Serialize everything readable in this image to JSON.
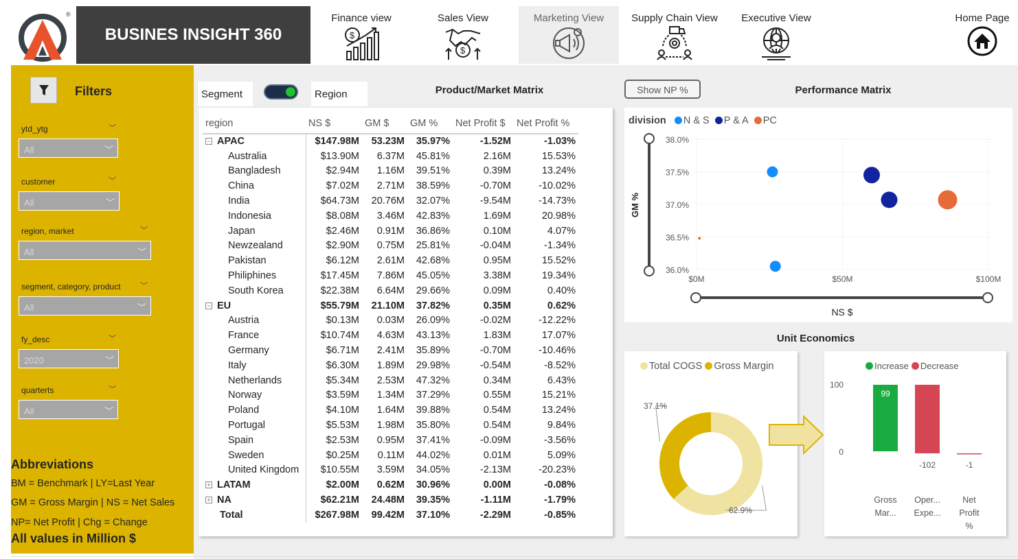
{
  "header": {
    "title": "BUSINES INSIGHT 360",
    "nav": [
      {
        "label": "Finance view",
        "icon": "finance-chart-icon"
      },
      {
        "label": "Sales View",
        "icon": "handshake-icon"
      },
      {
        "label": "Marketing View",
        "icon": "megaphone-icon"
      },
      {
        "label": "Supply Chain View",
        "icon": "supply-chain-icon"
      },
      {
        "label": "Executive View",
        "icon": "executive-icon"
      },
      {
        "label": "Home Page",
        "icon": "home-icon"
      }
    ]
  },
  "filters": {
    "title": "Filters",
    "items": [
      {
        "label": "ytd_ytg",
        "value": "All"
      },
      {
        "label": "customer",
        "value": "All"
      },
      {
        "label": "region, market",
        "value": "All"
      },
      {
        "label": "segment, category, product",
        "value": "All"
      },
      {
        "label": "fy_desc",
        "value": "2020"
      },
      {
        "label": "quarterts",
        "value": "All"
      }
    ]
  },
  "abbreviations": {
    "title": "Abbreviations",
    "lines": [
      "BM = Benchmark | LY=Last Year",
      "GM = Gross Margin | NS = Net Sales",
      "NP= Net Profit | Chg = Change"
    ],
    "footer": "All values in Million $"
  },
  "toggle": {
    "left": "Segment",
    "right": "Region"
  },
  "matrix": {
    "title": "Product/Market Matrix",
    "columns": [
      "region",
      "NS $",
      "GM $",
      "GM %",
      "Net Profit $",
      "Net Profit %"
    ],
    "rows": [
      {
        "type": "group",
        "expander": "⊟",
        "cells": [
          "APAC",
          "$147.98M",
          "53.23M",
          "35.97%",
          "-1.52M",
          "-1.03%"
        ]
      },
      {
        "type": "child",
        "cells": [
          "Australia",
          "$13.90M",
          "6.37M",
          "45.81%",
          "2.16M",
          "15.53%"
        ]
      },
      {
        "type": "child",
        "cells": [
          "Bangladesh",
          "$2.94M",
          "1.16M",
          "39.51%",
          "0.39M",
          "13.24%"
        ]
      },
      {
        "type": "child",
        "cells": [
          "China",
          "$7.02M",
          "2.71M",
          "38.59%",
          "-0.70M",
          "-10.02%"
        ]
      },
      {
        "type": "child",
        "cells": [
          "India",
          "$64.73M",
          "20.76M",
          "32.07%",
          "-9.54M",
          "-14.73%"
        ]
      },
      {
        "type": "child",
        "cells": [
          "Indonesia",
          "$8.08M",
          "3.46M",
          "42.83%",
          "1.69M",
          "20.98%"
        ]
      },
      {
        "type": "child",
        "cells": [
          "Japan",
          "$2.46M",
          "0.91M",
          "36.86%",
          "0.10M",
          "4.07%"
        ]
      },
      {
        "type": "child",
        "cells": [
          "Newzealand",
          "$2.90M",
          "0.75M",
          "25.81%",
          "-0.04M",
          "-1.34%"
        ]
      },
      {
        "type": "child",
        "cells": [
          "Pakistan",
          "$6.12M",
          "2.61M",
          "42.68%",
          "0.95M",
          "15.52%"
        ]
      },
      {
        "type": "child",
        "cells": [
          "Philiphines",
          "$17.45M",
          "7.86M",
          "45.05%",
          "3.38M",
          "19.34%"
        ]
      },
      {
        "type": "child",
        "cells": [
          "South Korea",
          "$22.38M",
          "6.64M",
          "29.66%",
          "0.09M",
          "0.40%"
        ]
      },
      {
        "type": "group",
        "expander": "⊟",
        "cells": [
          "EU",
          "$55.79M",
          "21.10M",
          "37.82%",
          "0.35M",
          "0.62%"
        ]
      },
      {
        "type": "child",
        "cells": [
          "Austria",
          "$0.13M",
          "0.03M",
          "26.09%",
          "-0.02M",
          "-12.22%"
        ]
      },
      {
        "type": "child",
        "cells": [
          "France",
          "$10.74M",
          "4.63M",
          "43.13%",
          "1.83M",
          "17.07%"
        ]
      },
      {
        "type": "child",
        "cells": [
          "Germany",
          "$6.71M",
          "2.41M",
          "35.89%",
          "-0.70M",
          "-10.46%"
        ]
      },
      {
        "type": "child",
        "cells": [
          "Italy",
          "$6.30M",
          "1.89M",
          "29.98%",
          "-0.54M",
          "-8.52%"
        ]
      },
      {
        "type": "child",
        "cells": [
          "Netherlands",
          "$5.34M",
          "2.53M",
          "47.32%",
          "0.34M",
          "6.43%"
        ]
      },
      {
        "type": "child",
        "cells": [
          "Norway",
          "$3.59M",
          "1.34M",
          "37.29%",
          "0.55M",
          "15.21%"
        ]
      },
      {
        "type": "child",
        "cells": [
          "Poland",
          "$4.10M",
          "1.64M",
          "39.88%",
          "0.54M",
          "13.24%"
        ]
      },
      {
        "type": "child",
        "cells": [
          "Portugal",
          "$5.53M",
          "1.98M",
          "35.80%",
          "0.54M",
          "9.84%"
        ]
      },
      {
        "type": "child",
        "cells": [
          "Spain",
          "$2.53M",
          "0.95M",
          "37.41%",
          "-0.09M",
          "-3.56%"
        ]
      },
      {
        "type": "child",
        "cells": [
          "Sweden",
          "$0.25M",
          "0.11M",
          "44.02%",
          "0.01M",
          "5.09%"
        ]
      },
      {
        "type": "child",
        "cells": [
          "United Kingdom",
          "$10.55M",
          "3.59M",
          "34.05%",
          "-2.13M",
          "-20.23%"
        ]
      },
      {
        "type": "group",
        "expander": "⊞",
        "cells": [
          "LATAM",
          "$2.00M",
          "0.62M",
          "30.96%",
          "0.00M",
          "-0.08%"
        ]
      },
      {
        "type": "group",
        "expander": "⊞",
        "cells": [
          "NA",
          "$62.21M",
          "24.48M",
          "39.35%",
          "-1.11M",
          "-1.79%"
        ]
      },
      {
        "type": "total",
        "cells": [
          "Total",
          "$267.98M",
          "99.42M",
          "37.10%",
          "-2.29M",
          "-0.85%"
        ]
      }
    ]
  },
  "show_np_button": "Show NP %",
  "performance": {
    "title": "Performance Matrix",
    "legend_title": "division",
    "chart_data": {
      "type": "scatter",
      "xlabel": "NS $",
      "ylabel": "GM %",
      "x_ticks": [
        "$0M",
        "$50M",
        "$100M"
      ],
      "y_ticks": [
        "38.0%",
        "37.5%",
        "37.0%",
        "36.5%",
        "36.0%"
      ],
      "xlim": [
        0,
        100
      ],
      "ylim": [
        36.0,
        38.0
      ],
      "grid": true,
      "legend_placement": "top-left",
      "series": [
        {
          "name": "N & S",
          "color": "#118dff",
          "points": [
            {
              "x": 26,
              "y": 37.5,
              "size": 8
            },
            {
              "x": 27,
              "y": 36.05,
              "size": 8
            }
          ]
        },
        {
          "name": "P & A",
          "color": "#12239e",
          "points": [
            {
              "x": 60,
              "y": 37.45,
              "size": 12
            },
            {
              "x": 66,
              "y": 37.07,
              "size": 12
            }
          ]
        },
        {
          "name": "PC",
          "color": "#e66c37",
          "points": [
            {
              "x": 86,
              "y": 37.07,
              "size": 14
            },
            {
              "x": 1,
              "y": 36.48,
              "size": 2
            }
          ]
        }
      ]
    }
  },
  "unit_economics": {
    "title": "Unit Economics",
    "donut": {
      "chart_data": {
        "type": "pie",
        "series": [
          {
            "name": "Total COGS",
            "value": 62.9,
            "label": "62.9%",
            "color": "#f0e2a0"
          },
          {
            "name": "Gross Margin",
            "value": 37.1,
            "label": "37.1%",
            "color": "#dcb400"
          }
        ],
        "legend_placement": "top"
      }
    },
    "bars": {
      "chart_data": {
        "type": "bar",
        "legend": [
          {
            "name": "Increase",
            "color": "#1aab40"
          },
          {
            "name": "Decrease",
            "color": "#d64554"
          }
        ],
        "y_ticks": [
          "100",
          "0"
        ],
        "ylim": [
          -110,
          100
        ],
        "categories": [
          [
            "Gross",
            "Mar..."
          ],
          [
            "Oper...",
            "Expe..."
          ],
          [
            "Net",
            "Profit",
            "%"
          ]
        ],
        "values": [
          99,
          -102,
          -1
        ],
        "labels": [
          "99",
          "-102",
          "-1"
        ],
        "legend_placement": "top"
      }
    }
  }
}
